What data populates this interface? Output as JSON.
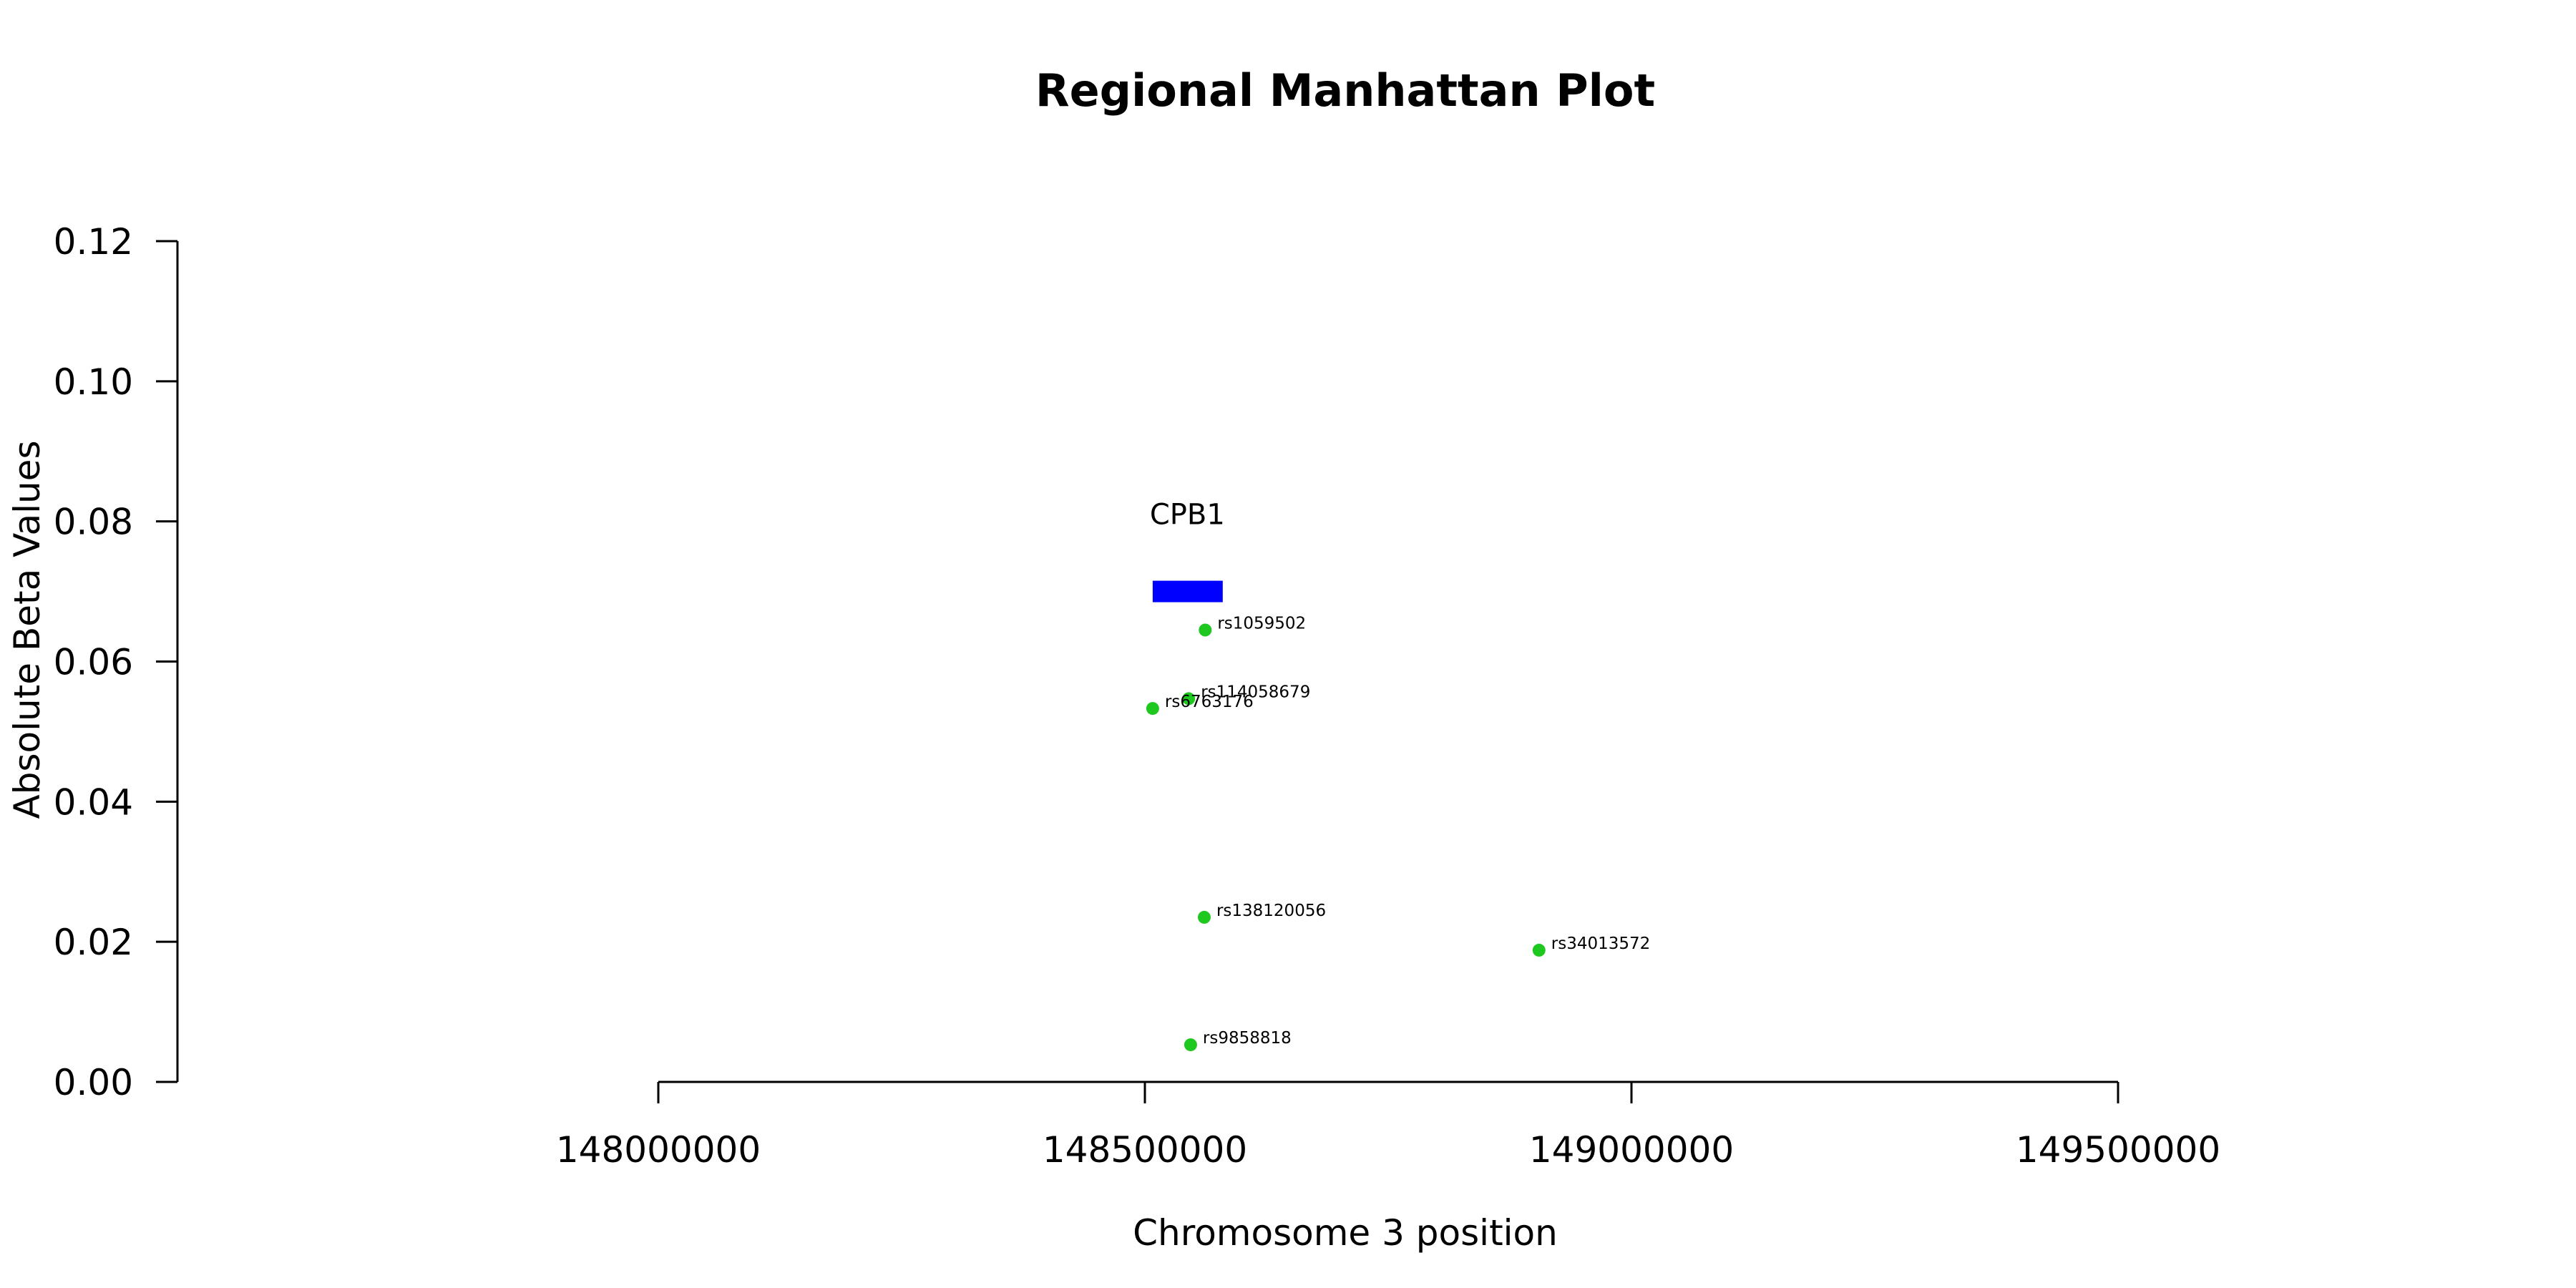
{
  "chart_data": {
    "type": "scatter",
    "title": "Regional Manhattan Plot",
    "xlabel": "Chromosome 3 position",
    "ylabel": "Absolute Beta Values",
    "xlim": [
      148000000,
      149500000
    ],
    "ylim": [
      0,
      0.12
    ],
    "x_ticks": [
      148000000,
      148500000,
      149000000,
      149500000
    ],
    "x_tick_labels": [
      "148000000",
      "148500000",
      "149000000",
      "149500000"
    ],
    "y_ticks": [
      0,
      0.02,
      0.04,
      0.06,
      0.08,
      0.1,
      0.12
    ],
    "y_tick_labels": [
      "0.00",
      "0.02",
      "0.04",
      "0.06",
      "0.08",
      "0.10",
      "0.12"
    ],
    "grid": false,
    "point_color": "#1ec81e",
    "gene_color": "#0000ff",
    "genes": [
      {
        "name": "CPB1",
        "start": 148508000,
        "end": 148580000,
        "y": 0.07
      }
    ],
    "points": [
      {
        "label": "rs1059502",
        "x": 148562000,
        "y": 0.0645
      },
      {
        "label": "rs114058679",
        "x": 148545000,
        "y": 0.0547
      },
      {
        "label": "rs6763176",
        "x": 148508000,
        "y": 0.0533
      },
      {
        "label": "rs138120056",
        "x": 148561000,
        "y": 0.0235
      },
      {
        "label": "rs34013572",
        "x": 148905000,
        "y": 0.0188
      },
      {
        "label": "rs9858818",
        "x": 148547000,
        "y": 0.0053
      }
    ]
  }
}
